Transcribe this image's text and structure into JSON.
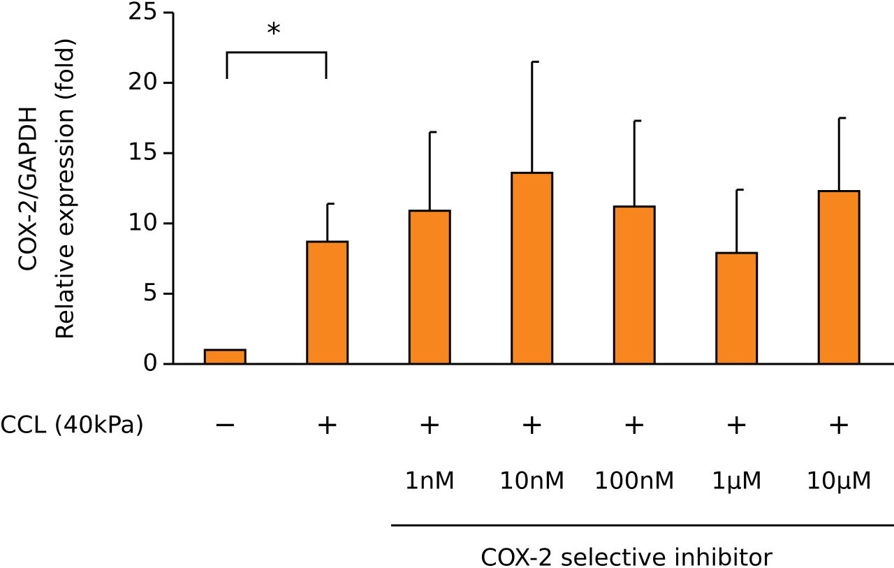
{
  "chart_data": {
    "type": "bar",
    "y_label": [
      "COX-2/GAPDH",
      "Relative expression (fold)"
    ],
    "values": [
      1.0,
      8.7,
      10.9,
      13.6,
      11.2,
      7.9,
      12.3
    ],
    "errors": [
      null,
      2.7,
      5.6,
      7.9,
      6.1,
      4.5,
      5.2
    ],
    "color": "#f7861e",
    "ylim": [
      0,
      25
    ],
    "yticks": [
      0,
      5,
      10,
      15,
      20,
      25
    ],
    "ccl_label": "CCL (40kPa)",
    "ccl": [
      "−",
      "+",
      "+",
      "+",
      "+",
      "+",
      "+"
    ],
    "categories": [
      null,
      null,
      "1nM",
      "10nM",
      "100nM",
      "1μM",
      "10μM"
    ],
    "group_label": "COX-2 selective inhibitor",
    "significance": "*"
  }
}
